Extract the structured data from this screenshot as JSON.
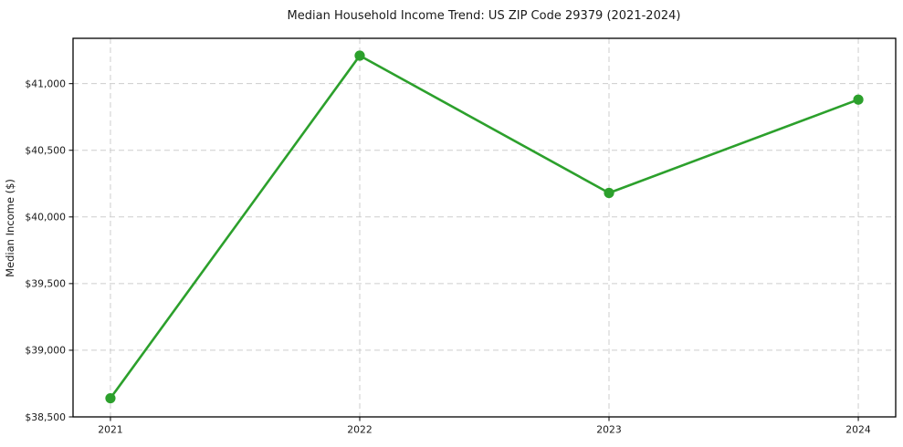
{
  "figure": {
    "background_color": "#ffffff"
  },
  "chart_data": {
    "type": "line",
    "title": "Median Household Income Trend: US ZIP Code 29379 (2021-2024)",
    "xlabel": "",
    "ylabel": "Median Income ($)",
    "x": [
      2021,
      2022,
      2023,
      2024
    ],
    "x_tick_labels": [
      "2021",
      "2022",
      "2023",
      "2024"
    ],
    "values": [
      38640,
      41210,
      40180,
      40880
    ],
    "y_ticks": [
      {
        "value": 38500,
        "label": "$38,500"
      },
      {
        "value": 39000,
        "label": "$39,000"
      },
      {
        "value": 39500,
        "label": "$39,500"
      },
      {
        "value": 40000,
        "label": "$40,000"
      },
      {
        "value": 40500,
        "label": "$40,500"
      },
      {
        "value": 41000,
        "label": "$41,000"
      }
    ],
    "xlim": [
      2020.85,
      2024.15
    ],
    "ylim": [
      38500,
      41340
    ],
    "grid": true,
    "grid_style": "dashed",
    "legend_position": "none",
    "line_color": "#2ca02c",
    "marker": "circle",
    "grid_color": "#cdcdcd",
    "axis_color": "#000000"
  }
}
